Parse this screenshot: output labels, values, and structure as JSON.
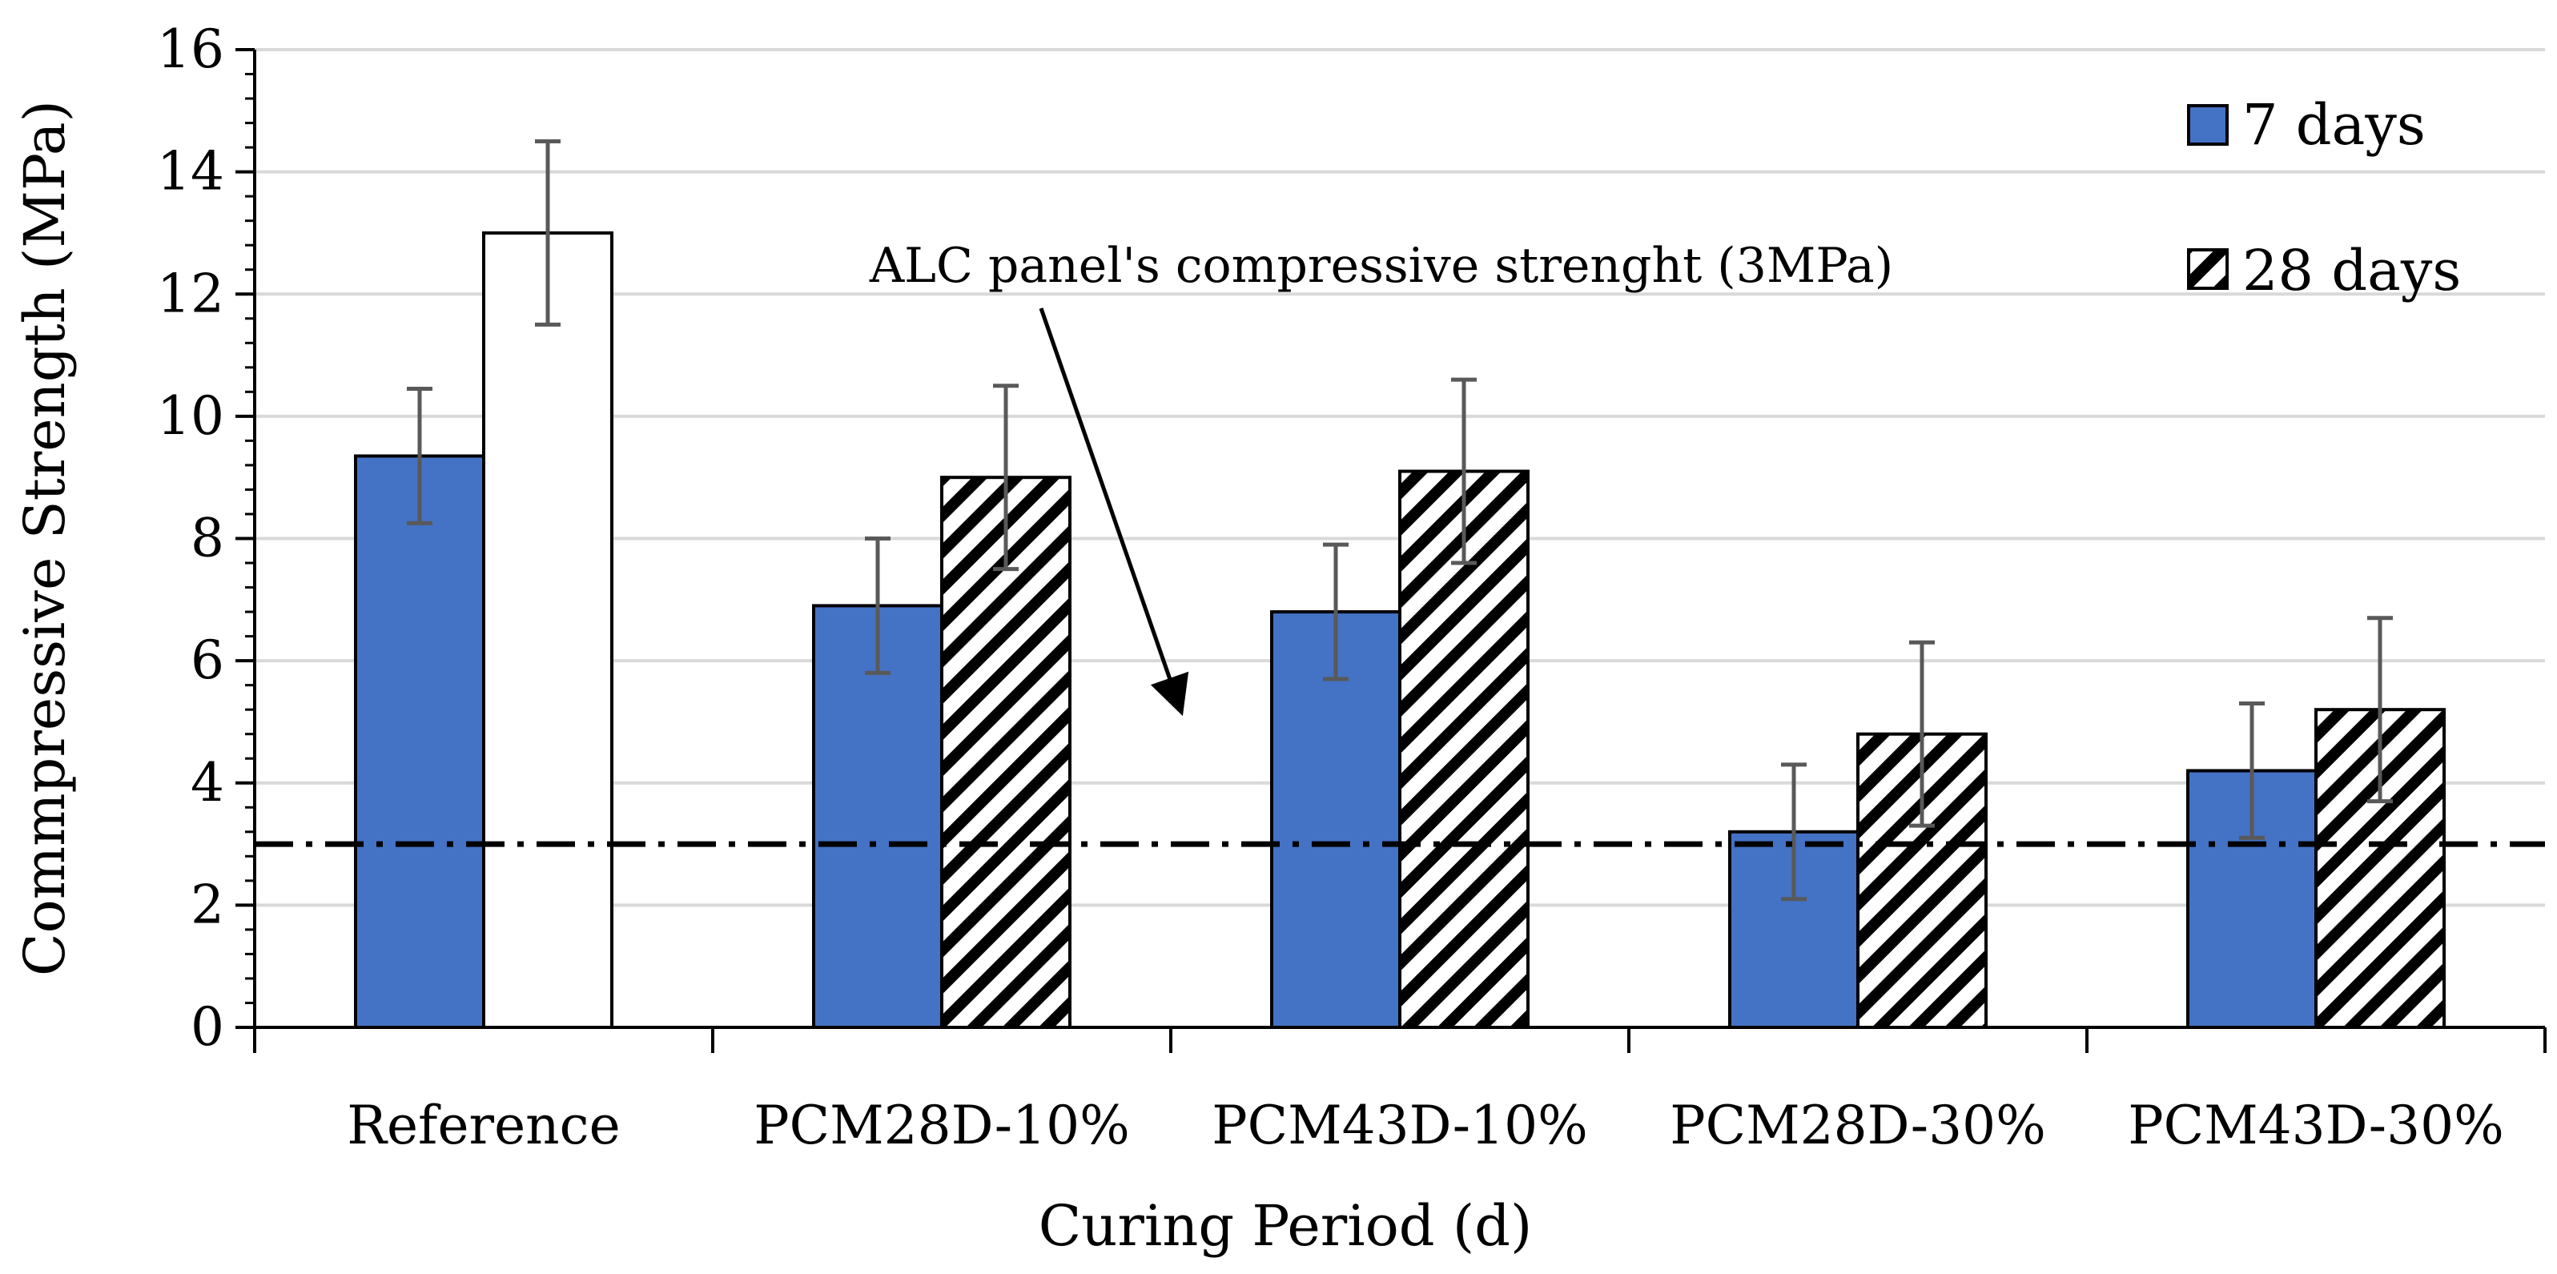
{
  "chart_data": {
    "type": "bar",
    "xlabel": "Curing Period (d)",
    "ylabel": "Commpressive Strength (MPa)",
    "ylim": [
      0,
      16
    ],
    "yticks": [
      "0",
      "2",
      "4",
      "6",
      "8",
      "10",
      "12",
      "14",
      "16"
    ],
    "grid": true,
    "legend_position": "top-right",
    "categories": [
      "Reference",
      "PCM28D-10%",
      "PCM43D-10%",
      "PCM28D-30%",
      "PCM43D-30%"
    ],
    "series": [
      {
        "name": "7 days",
        "style": "solid",
        "color": "#4472C4",
        "values": [
          9.35,
          6.9,
          6.8,
          3.2,
          4.2
        ],
        "errors": [
          1.1,
          1.1,
          1.1,
          1.1,
          1.1
        ]
      },
      {
        "name": "28 days",
        "style": "hatched",
        "color": "#000000",
        "values": [
          13.0,
          9.0,
          9.1,
          4.8,
          5.2
        ],
        "errors": [
          1.5,
          1.5,
          1.5,
          1.5,
          1.5
        ]
      }
    ],
    "reference_line": {
      "value": 3,
      "style": "dash-dot",
      "annotation": "ALC panel's compressive strenght (3MPa)"
    },
    "colors": {
      "bar_7d": "#4472C4",
      "gridline": "#d9d9d9",
      "error_bar": "#595959"
    }
  }
}
